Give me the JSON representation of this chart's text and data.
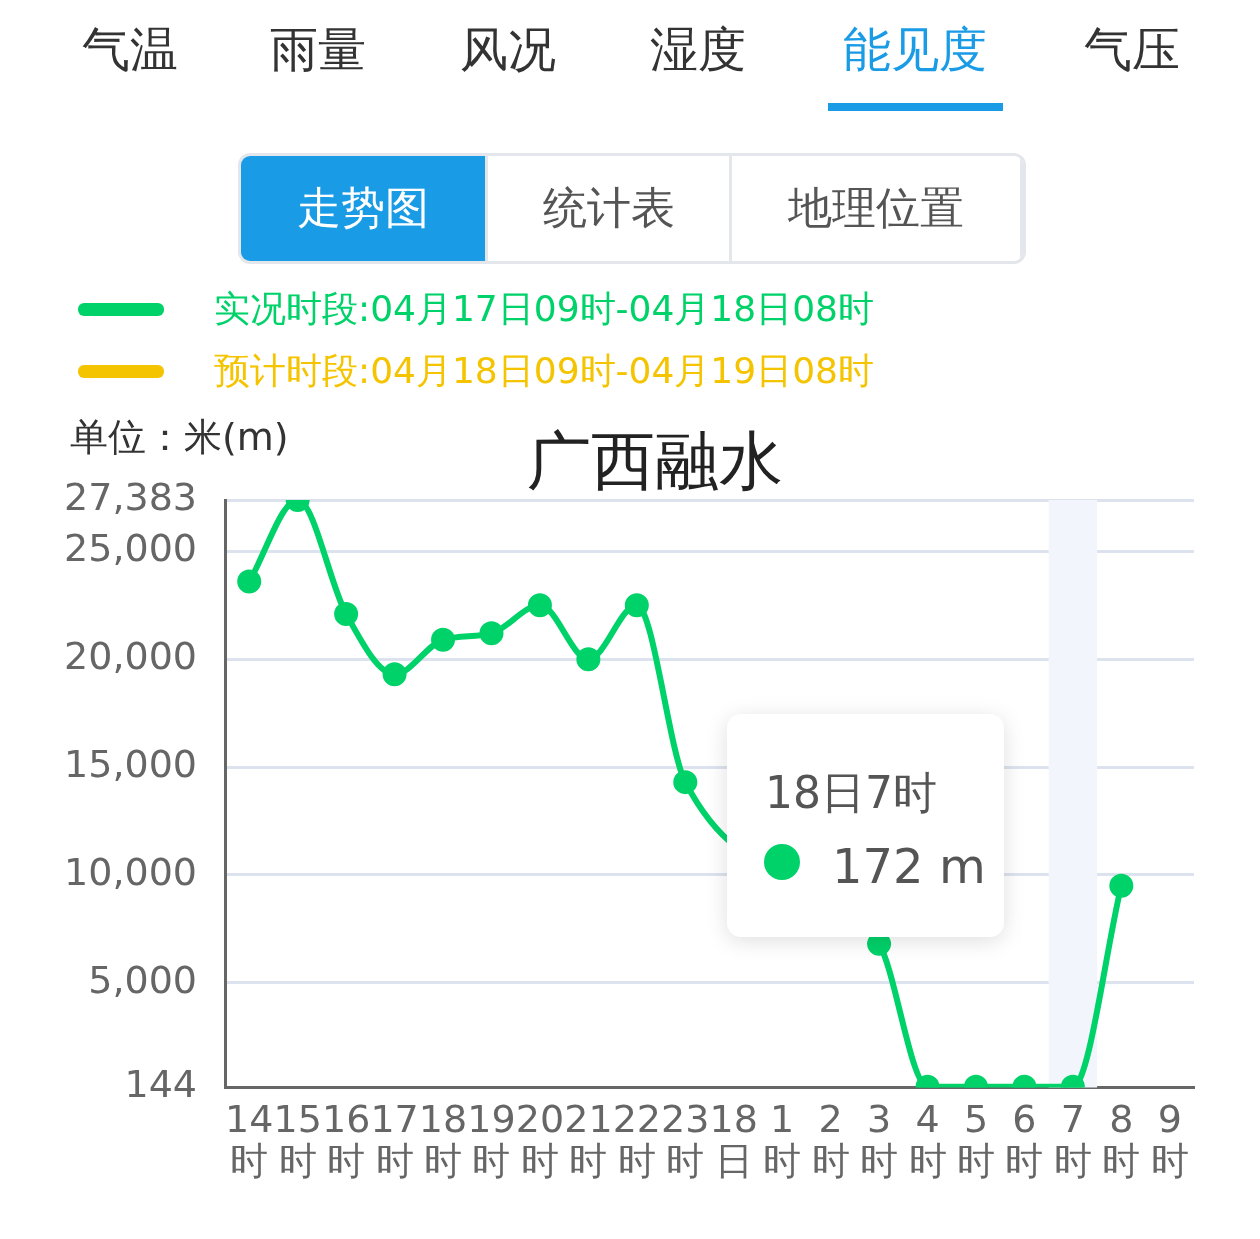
{
  "chart_data": {
    "type": "line",
    "title": "广西融水",
    "ylabel": "单位：米(m)",
    "annotations": [
      "气温",
      "雨量",
      "风况",
      "湿度",
      "能见度",
      "气压",
      "走势图",
      "统计表",
      "地理位置",
      "18日7时",
      "172 m"
    ],
    "categories": [
      "14时",
      "15时",
      "16时",
      "17时",
      "18时",
      "19时",
      "20时",
      "21时",
      "22时",
      "23时",
      "18日",
      "1时",
      "2时",
      "3时",
      "4时",
      "5时",
      "6时",
      "7时",
      "8时",
      "9时"
    ],
    "series": [
      {
        "name": "实况时段:04月17日09时-04月18日08时",
        "color": "#00d26a",
        "values": [
          23600,
          27383,
          22100,
          19300,
          20900,
          21200,
          22500,
          20000,
          22500,
          14300,
          null,
          null,
          null,
          6800,
          172,
          172,
          172,
          172,
          9500,
          null
        ]
      },
      {
        "name": "预计时段:04月18日09时-04月19日08时",
        "color": "#f5c400",
        "values": [
          null,
          null,
          null,
          null,
          null,
          null,
          null,
          null,
          null,
          null,
          null,
          null,
          null,
          null,
          null,
          null,
          null,
          null,
          null,
          null
        ]
      }
    ],
    "ylim": [
      144,
      27383
    ],
    "yticks": [
      144,
      {
        "value": 5000,
        "label": "5,000"
      },
      {
        "value": 10000,
        "label": "10,000"
      },
      {
        "value": 15000,
        "label": "15,000"
      },
      {
        "value": 20000,
        "label": "20,000"
      },
      {
        "value": 25000,
        "label": "25,000"
      },
      {
        "value": 27383,
        "label": "27,383"
      }
    ],
    "bands": [
      {
        "axis": "x",
        "from": "7时",
        "to": "7时",
        "color": "#f2f5fb"
      }
    ],
    "grid": "y",
    "legend": "top left",
    "marker": "circle",
    "line_style": "solid"
  }
}
